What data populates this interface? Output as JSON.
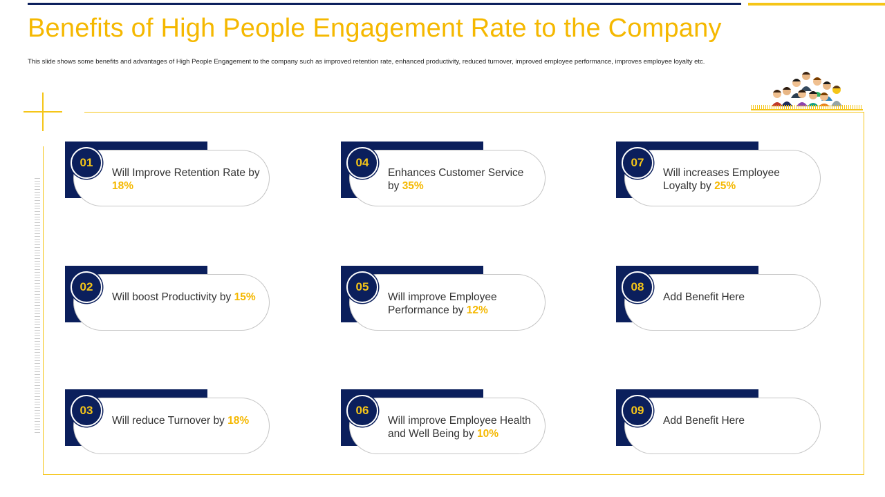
{
  "title": "Benefits of High People Engagement Rate to the Company",
  "subtitle": "This slide shows some benefits and advantages of High People Engagement to the company such as improved retention rate, enhanced productivity, reduced turnover, improved employee performance, improves employee loyalty etc.",
  "colors": {
    "navy": "#0b1f5c",
    "gold": "#f5b800",
    "border": "#f5c518"
  },
  "people_icon": "group-of-people-icon",
  "benefits": [
    {
      "num": "01",
      "text": "Will Improve Retention Rate by ",
      "pct": "18%"
    },
    {
      "num": "02",
      "text": "Will boost Productivity by ",
      "pct": "15%"
    },
    {
      "num": "03",
      "text": "Will reduce Turnover by ",
      "pct": "18%"
    },
    {
      "num": "04",
      "text": "Enhances Customer Service by ",
      "pct": "35%"
    },
    {
      "num": "05",
      "text": "Will improve Employee Performance by ",
      "pct": "12%"
    },
    {
      "num": "06",
      "text": "Will improve Employee Health and Well Being by ",
      "pct": "10%"
    },
    {
      "num": "07",
      "text": "Will increases Employee Loyalty by ",
      "pct": "25%"
    },
    {
      "num": "08",
      "text": "Add Benefit Here",
      "pct": ""
    },
    {
      "num": "09",
      "text": "Add Benefit Here",
      "pct": ""
    }
  ]
}
